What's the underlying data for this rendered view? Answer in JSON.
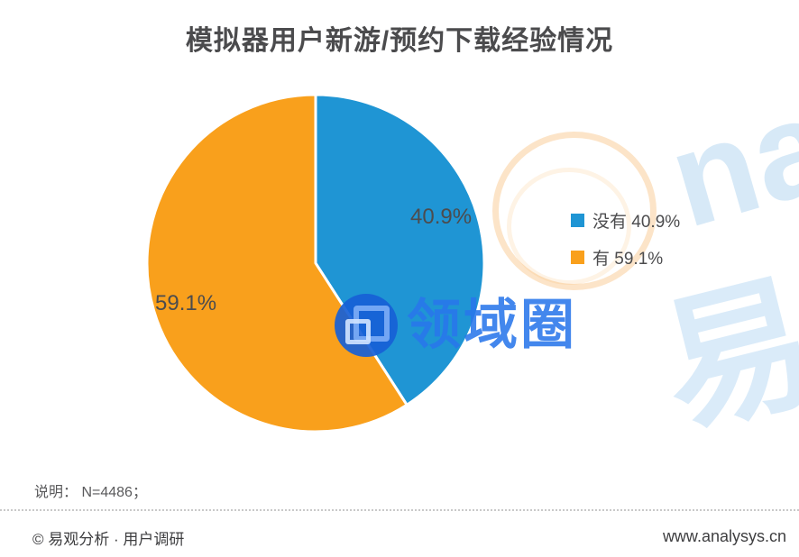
{
  "chart_data": {
    "type": "pie",
    "title": "模拟器用户新游/预约下载经验情况",
    "categories": [
      "没有",
      "有"
    ],
    "values": [
      40.9,
      59.1
    ],
    "unit": "%",
    "colors": [
      "#1f95d4",
      "#f9a01c"
    ],
    "start_angle_deg": 0,
    "direction": "clockwise",
    "slice_labels": [
      "40.9%",
      "59.1%"
    ],
    "legend_position": "right",
    "separator_stroke": "#ffffff"
  },
  "legend": {
    "items": [
      {
        "label": "没有 40.9%",
        "swatch": "#1f95d4"
      },
      {
        "label": "有 59.1%",
        "swatch": "#f9a01c"
      }
    ]
  },
  "watermark": {
    "brand_text": "领域圈",
    "bg_letters_top_right": "na",
    "bg_char_right": "易"
  },
  "note": {
    "text": "说明： N=4486；"
  },
  "footer": {
    "left": "© 易观分析 · 用户调研",
    "right": "www.analysys.cn"
  }
}
